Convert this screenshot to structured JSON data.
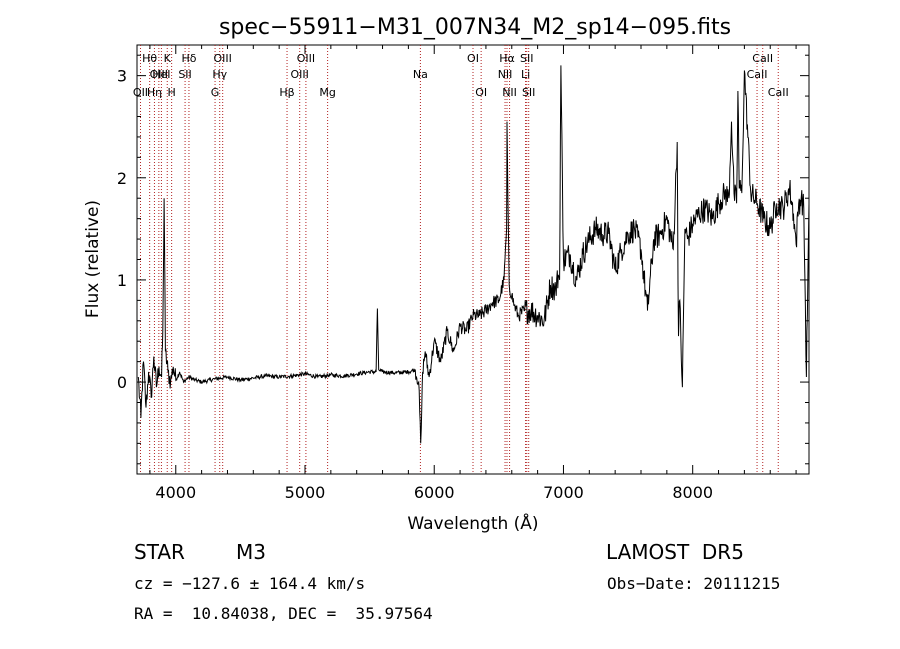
{
  "chart_data": {
    "type": "line",
    "title": "spec−55911−M31_007N34_M2_sp14−095.fits",
    "xlabel": "Wavelength (Å)",
    "ylabel": "Flux (relative)",
    "xlim": [
      3700,
      8900
    ],
    "ylim": [
      -0.9,
      3.3
    ],
    "x_ticks": [
      4000,
      5000,
      6000,
      7000,
      8000
    ],
    "y_ticks": [
      0,
      1,
      2,
      3
    ],
    "grid": false,
    "series": [
      {
        "x": [
          3710,
          3730,
          3750,
          3770,
          3790,
          3810,
          3830,
          3850,
          3870,
          3890,
          3900,
          3910,
          3920,
          3940,
          3960,
          3980,
          4000,
          4030,
          4060,
          4100,
          4150,
          4200,
          4300,
          4400,
          4500,
          4600,
          4700,
          4800,
          4900,
          5000,
          5100,
          5200,
          5300,
          5400,
          5500,
          5550,
          5560,
          5570,
          5600,
          5700,
          5800,
          5850,
          5880,
          5895,
          5900,
          5910,
          5930,
          5960,
          6000,
          6050,
          6100,
          6150,
          6200,
          6250,
          6300,
          6350,
          6400,
          6450,
          6500,
          6540,
          6560,
          6563,
          6570,
          6580,
          6600,
          6620,
          6650,
          6700,
          6750,
          6800,
          6850,
          6900,
          6940,
          6960,
          6970,
          6980,
          7000,
          7050,
          7100,
          7150,
          7200,
          7250,
          7300,
          7350,
          7400,
          7450,
          7500,
          7550,
          7600,
          7650,
          7700,
          7750,
          7800,
          7850,
          7880,
          7890,
          7900,
          7920,
          7940,
          7960,
          8000,
          8050,
          8100,
          8150,
          8200,
          8250,
          8280,
          8300,
          8320,
          8340,
          8350,
          8360,
          8380,
          8400,
          8450,
          8500,
          8550,
          8600,
          8650,
          8700,
          8750,
          8780,
          8800,
          8820,
          8840,
          8860,
          8880,
          8900
        ],
        "y": [
          0.05,
          -0.35,
          0.2,
          -0.25,
          0.1,
          -0.15,
          0.25,
          -0.05,
          0.15,
          0.05,
          0.5,
          1.8,
          0.3,
          0.1,
          0.0,
          0.15,
          0.02,
          0.1,
          0.0,
          0.05,
          0.02,
          0.0,
          0.03,
          0.05,
          0.02,
          0.04,
          0.06,
          0.05,
          0.06,
          0.08,
          0.05,
          0.07,
          0.06,
          0.08,
          0.1,
          0.1,
          0.72,
          0.12,
          0.1,
          0.09,
          0.1,
          0.12,
          0.0,
          -0.6,
          -0.45,
          0.1,
          0.3,
          0.05,
          0.4,
          0.2,
          0.5,
          0.3,
          0.55,
          0.5,
          0.65,
          0.65,
          0.7,
          0.78,
          0.8,
          1.0,
          1.5,
          2.55,
          1.8,
          0.95,
          0.85,
          0.75,
          0.65,
          0.7,
          0.7,
          0.65,
          0.6,
          0.95,
          0.9,
          1.05,
          1.0,
          3.1,
          1.2,
          1.25,
          1.0,
          1.25,
          1.4,
          1.5,
          1.45,
          1.45,
          1.1,
          1.3,
          1.45,
          1.5,
          1.3,
          0.7,
          1.4,
          1.45,
          1.6,
          1.3,
          2.35,
          0.45,
          0.8,
          -0.05,
          1.5,
          1.4,
          1.55,
          1.65,
          1.7,
          1.6,
          1.75,
          1.85,
          1.8,
          2.55,
          1.85,
          1.75,
          2.85,
          1.9,
          1.85,
          3.05,
          1.85,
          1.75,
          1.6,
          1.5,
          1.75,
          1.7,
          1.9,
          1.65,
          1.35,
          1.75,
          1.8,
          1.7,
          0.05,
          1.75
        ]
      }
    ],
    "lines": [
      {
        "x": 3727,
        "label": "OII",
        "row": 3
      },
      {
        "x": 3798,
        "label": "Hθ",
        "row": 1
      },
      {
        "x": 3835,
        "label": "Hη",
        "row": 3
      },
      {
        "x": 3869,
        "label": "OIII",
        "row": 2
      },
      {
        "x": 3889,
        "label": "HeI",
        "row": 2
      },
      {
        "x": 3934,
        "label": "K",
        "row": 1
      },
      {
        "x": 3968,
        "label": "H",
        "row": 3
      },
      {
        "x": 4072,
        "label": "SII",
        "row": 2
      },
      {
        "x": 4102,
        "label": "Hδ",
        "row": 1
      },
      {
        "x": 4304,
        "label": "G",
        "row": 3
      },
      {
        "x": 4340,
        "label": "Hγ",
        "row": 2
      },
      {
        "x": 4363,
        "label": "OIII",
        "row": 1
      },
      {
        "x": 4861,
        "label": "Hβ",
        "row": 3
      },
      {
        "x": 4959,
        "label": "OIII",
        "row": 2
      },
      {
        "x": 5007,
        "label": "OIII",
        "row": 1
      },
      {
        "x": 5175,
        "label": "Mg",
        "row": 3
      },
      {
        "x": 5893,
        "label": "Na",
        "row": 2
      },
      {
        "x": 6300,
        "label": "OI",
        "row": 1
      },
      {
        "x": 6363,
        "label": "OI",
        "row": 3
      },
      {
        "x": 6548,
        "label": "NII",
        "row": 2
      },
      {
        "x": 6563,
        "label": "Hα",
        "row": 1
      },
      {
        "x": 6583,
        "label": "NII",
        "row": 3
      },
      {
        "x": 6707,
        "label": "Li",
        "row": 2
      },
      {
        "x": 6716,
        "label": "SII",
        "row": 1
      },
      {
        "x": 6731,
        "label": "SII",
        "row": 3
      },
      {
        "x": 8498,
        "label": "CaII",
        "row": 2
      },
      {
        "x": 8542,
        "label": "CaII",
        "row": 1
      },
      {
        "x": 8662,
        "label": "CaII",
        "row": 3
      }
    ]
  },
  "info": {
    "star_class": "STAR",
    "subclass": "M3",
    "survey": "LAMOST  DR5",
    "cz": "cz = −127.6 ± 164.4 km/s",
    "obs_date": "Obs−Date: 20111215",
    "coords": "RA =  10.84038, DEC =  35.97564"
  },
  "colors": {
    "line_marker": "#b22222",
    "spectrum": "#000000",
    "axis": "#000000"
  }
}
